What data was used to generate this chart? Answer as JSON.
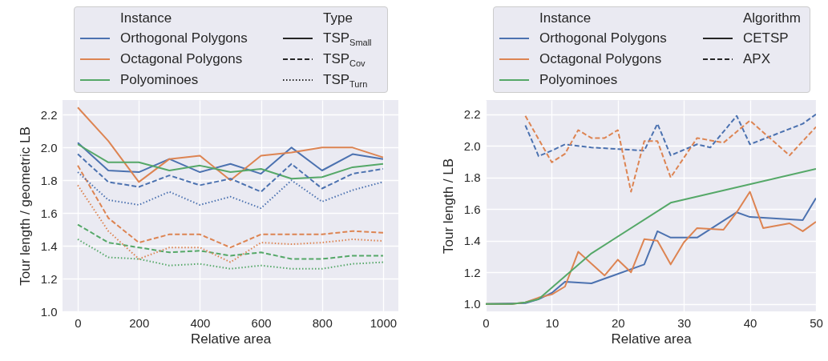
{
  "chart_data": [
    {
      "type": "line",
      "xlabel": "Relative area",
      "ylabel": "Tour length / geometric LB",
      "xlim": [
        -50,
        1050
      ],
      "ylim": [
        1.0,
        2.29
      ],
      "xticks": [
        0,
        200,
        400,
        600,
        800,
        1000
      ],
      "yticks": [
        {
          "value": 1,
          "label": "1.0"
        },
        {
          "value": 1.2,
          "label": "1.2"
        },
        {
          "value": 1.4,
          "label": "1.4"
        },
        {
          "value": 1.6,
          "label": "1.6"
        },
        {
          "value": 1.8,
          "label": "1.8"
        },
        {
          "value": 2,
          "label": "2.0"
        },
        {
          "value": 2.2,
          "label": "2.2"
        }
      ],
      "grid": true,
      "legend": "top",
      "legend_title": "Instance",
      "annotations": [
        "Type",
        "TSP$_{Small}$",
        "TSP$_{Cov}$",
        "TSP$_{Turn}$"
      ],
      "series": [
        {
          "name": "Orthogonal Polygons",
          "color": "#4c72b0",
          "line_style": "solid",
          "x": [
            0,
            100,
            200,
            300,
            400,
            500,
            600,
            700,
            800,
            900,
            1000
          ],
          "values": [
            2.03,
            1.86,
            1.85,
            1.93,
            1.85,
            1.9,
            1.84,
            2.0,
            1.86,
            1.96,
            1.93
          ]
        },
        {
          "name": "Octagonal Polygons",
          "color": "#dd8452",
          "line_style": "solid",
          "x": [
            0,
            100,
            200,
            300,
            400,
            500,
            600,
            700,
            800,
            900,
            1000
          ],
          "values": [
            2.245,
            2.04,
            1.79,
            1.93,
            1.95,
            1.8,
            1.95,
            1.97,
            2.0,
            2.0,
            1.94
          ]
        },
        {
          "name": "Polyominoes",
          "color": "#55a868",
          "line_style": "solid",
          "x": [
            0,
            100,
            200,
            300,
            400,
            500,
            600,
            700,
            800,
            900,
            1000
          ],
          "values": [
            2.02,
            1.91,
            1.91,
            1.86,
            1.89,
            1.85,
            1.87,
            1.81,
            1.82,
            1.88,
            1.9
          ]
        },
        {
          "color": "#4c72b0",
          "line_style": "dashed",
          "x": [
            0,
            100,
            200,
            300,
            400,
            500,
            600,
            700,
            800,
            900,
            1000
          ],
          "values": [
            1.96,
            1.79,
            1.76,
            1.83,
            1.77,
            1.81,
            1.73,
            1.9,
            1.75,
            1.84,
            1.87
          ]
        },
        {
          "color": "#dd8452",
          "line_style": "dashed",
          "x": [
            0,
            100,
            200,
            300,
            400,
            500,
            600,
            700,
            800,
            900,
            1000
          ],
          "values": [
            1.89,
            1.57,
            1.42,
            1.47,
            1.47,
            1.39,
            1.47,
            1.47,
            1.47,
            1.49,
            1.48
          ]
        },
        {
          "color": "#55a868",
          "line_style": "dashed",
          "x": [
            0,
            100,
            200,
            300,
            400,
            500,
            600,
            700,
            800,
            900,
            1000
          ],
          "values": [
            1.53,
            1.42,
            1.39,
            1.36,
            1.37,
            1.34,
            1.36,
            1.32,
            1.32,
            1.34,
            1.34
          ]
        },
        {
          "color": "#4c72b0",
          "line_style": "dotted",
          "x": [
            0,
            100,
            200,
            300,
            400,
            500,
            600,
            700,
            800,
            900,
            1000
          ],
          "values": [
            1.85,
            1.68,
            1.65,
            1.73,
            1.65,
            1.7,
            1.63,
            1.8,
            1.67,
            1.74,
            1.79
          ]
        },
        {
          "color": "#dd8452",
          "line_style": "dotted",
          "x": [
            0,
            100,
            200,
            300,
            400,
            500,
            600,
            700,
            800,
            900,
            1000
          ],
          "values": [
            1.77,
            1.49,
            1.32,
            1.39,
            1.39,
            1.3,
            1.42,
            1.41,
            1.42,
            1.44,
            1.43
          ]
        },
        {
          "color": "#55a868",
          "line_style": "dotted",
          "x": [
            0,
            100,
            200,
            300,
            400,
            500,
            600,
            700,
            800,
            900,
            1000
          ],
          "values": [
            1.44,
            1.33,
            1.32,
            1.28,
            1.29,
            1.26,
            1.28,
            1.26,
            1.26,
            1.29,
            1.3
          ]
        }
      ]
    },
    {
      "type": "line",
      "xlabel": "Relative area",
      "ylabel": "Tour length / LB",
      "xlim": [
        0,
        50
      ],
      "ylim": [
        0.953,
        2.29
      ],
      "xticks": [
        0,
        10,
        20,
        30,
        40,
        50
      ],
      "yticks": [
        {
          "value": 1,
          "label": "1.0"
        },
        {
          "value": 1.2,
          "label": "1.2"
        },
        {
          "value": 1.4,
          "label": "1.4"
        },
        {
          "value": 1.6,
          "label": "1.6"
        },
        {
          "value": 1.8,
          "label": "1.8"
        },
        {
          "value": 2,
          "label": "2.0"
        },
        {
          "value": 2.2,
          "label": "2.2"
        }
      ],
      "grid": true,
      "legend": "top",
      "legend_title": "Instance",
      "annotations": [
        "Algorithm",
        "CETSP",
        "APX"
      ],
      "series": [
        {
          "name": "Orthogonal Polygons",
          "color": "#4c72b0",
          "line_style": "solid",
          "x": [
            0,
            6,
            8,
            10,
            12,
            16,
            24,
            26,
            28,
            32,
            38,
            40,
            48,
            50
          ],
          "values": [
            1.0,
            1.005,
            1.03,
            1.07,
            1.14,
            1.13,
            1.25,
            1.46,
            1.42,
            1.42,
            1.58,
            1.55,
            1.53,
            1.67
          ]
        },
        {
          "name": "Octagonal Polygons",
          "color": "#dd8452",
          "line_style": "solid",
          "x": [
            0,
            4,
            6,
            8,
            10,
            12,
            14,
            18,
            20,
            22,
            24,
            26,
            28,
            30,
            32,
            36,
            38,
            40,
            42,
            46,
            48,
            50
          ],
          "values": [
            1.0,
            1.0,
            1.01,
            1.04,
            1.06,
            1.11,
            1.33,
            1.18,
            1.28,
            1.2,
            1.41,
            1.4,
            1.25,
            1.39,
            1.48,
            1.47,
            1.58,
            1.71,
            1.48,
            1.51,
            1.46,
            1.52
          ]
        },
        {
          "name": "Polyominoes",
          "color": "#55a868",
          "line_style": "solid",
          "x": [
            0,
            4,
            6,
            8,
            16,
            28,
            50
          ],
          "values": [
            1.0,
            1.0,
            1.01,
            1.03,
            1.32,
            1.64,
            1.854
          ]
        },
        {
          "color": "#4c72b0",
          "line_style": "dashed",
          "x": [
            6,
            8,
            10,
            12,
            16,
            20,
            24,
            26,
            28,
            32,
            34,
            38,
            40,
            48,
            50
          ],
          "values": [
            2.13,
            1.935,
            1.97,
            2.01,
            1.99,
            1.98,
            1.97,
            2.14,
            1.94,
            2.01,
            1.99,
            2.19,
            2.01,
            2.14,
            2.2
          ]
        },
        {
          "color": "#dd8452",
          "line_style": "dashed",
          "x": [
            6,
            10,
            12,
            14,
            16,
            18,
            20,
            22,
            24,
            26,
            28,
            32,
            36,
            40,
            46,
            48,
            50
          ],
          "values": [
            2.19,
            1.896,
            1.95,
            2.1,
            2.05,
            2.05,
            2.1,
            1.71,
            2.03,
            2.03,
            1.8,
            2.05,
            2.02,
            2.16,
            1.94,
            2.03,
            2.12
          ]
        }
      ]
    }
  ]
}
